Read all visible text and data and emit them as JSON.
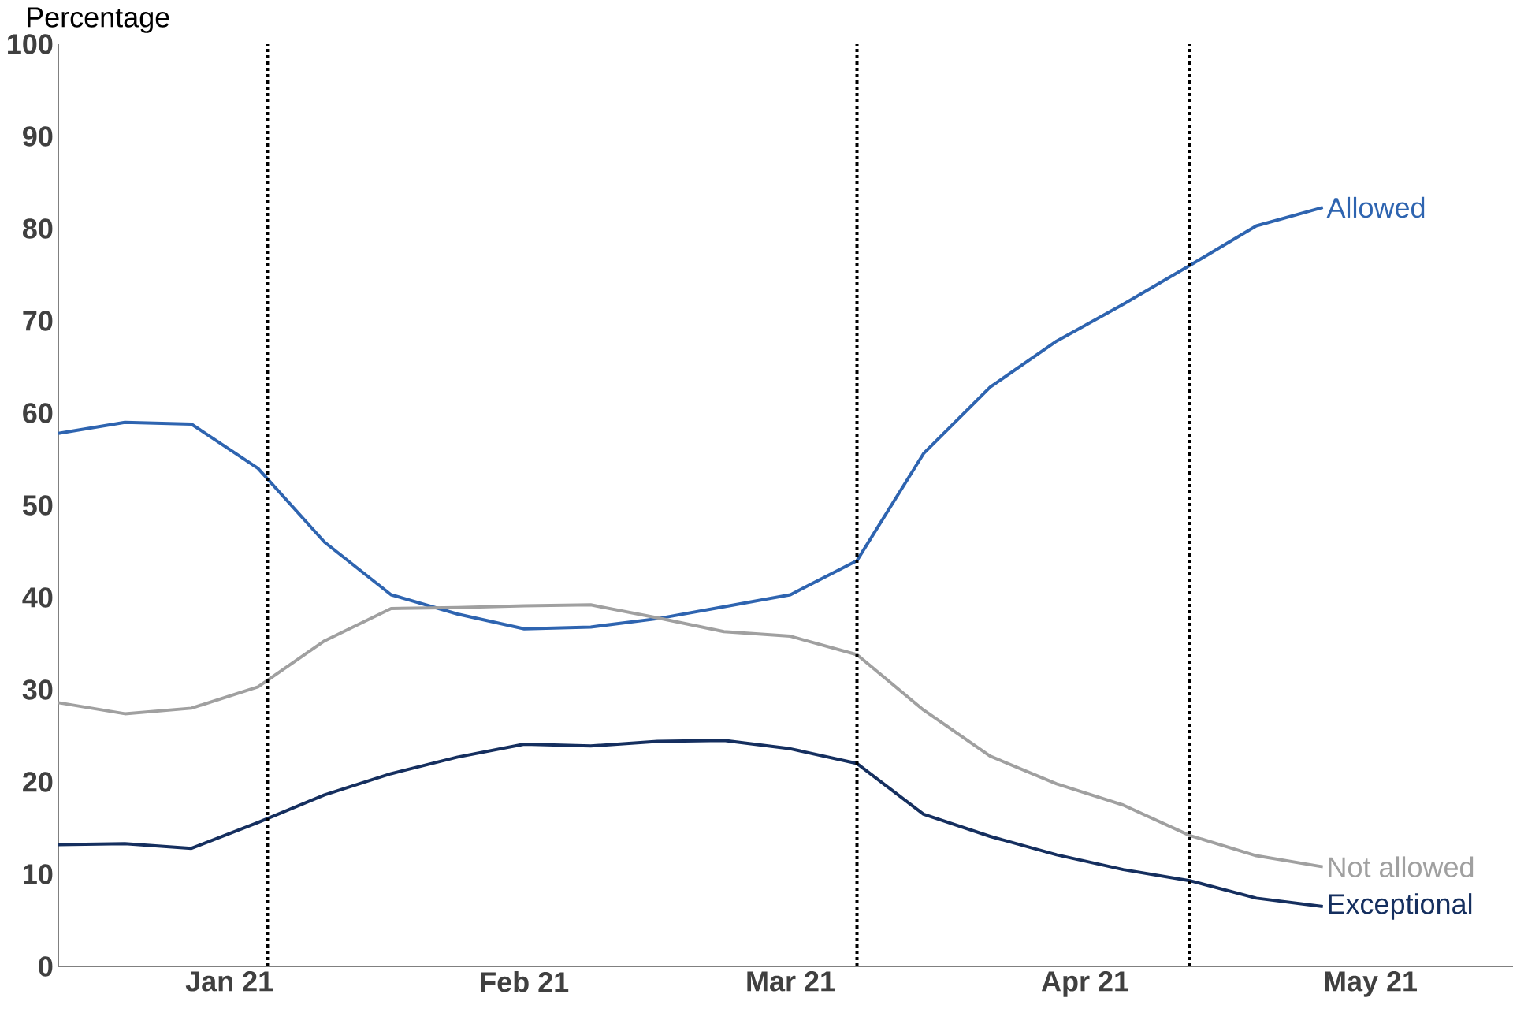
{
  "chart_data": {
    "type": "line",
    "ylabel": "Percentage",
    "x": [
      "2020-12-14",
      "2020-12-21",
      "2020-12-28",
      "2021-01-04",
      "2021-01-11",
      "2021-01-18",
      "2021-01-25",
      "2021-02-01",
      "2021-02-08",
      "2021-02-15",
      "2021-02-22",
      "2021-03-01",
      "2021-03-08",
      "2021-03-15",
      "2021-03-22",
      "2021-03-29",
      "2021-04-05",
      "2021-04-12",
      "2021-04-19",
      "2021-04-26"
    ],
    "xlim": [
      "2020-12-14",
      "2021-05-16"
    ],
    "xticks": [
      {
        "value": "2021-01-01",
        "label": "Jan 21"
      },
      {
        "value": "2021-02-01",
        "label": "Feb 21"
      },
      {
        "value": "2021-03-01",
        "label": "Mar 21"
      },
      {
        "value": "2021-04-01",
        "label": "Apr 21"
      },
      {
        "value": "2021-05-01",
        "label": "May 21"
      }
    ],
    "ylim": [
      0,
      100
    ],
    "yticks": [
      0,
      10,
      20,
      30,
      40,
      50,
      60,
      70,
      80,
      90,
      100
    ],
    "grid": false,
    "legend": false,
    "series": [
      {
        "name": "Allowed",
        "color": "#2e64b0",
        "values": [
          57.8,
          59.0,
          58.8,
          54,
          46,
          40.3,
          38.2,
          36.6,
          36.8,
          37.7,
          39,
          40.3,
          44,
          55.6,
          62.8,
          67.8,
          71.8,
          76,
          80.3,
          82.3
        ]
      },
      {
        "name": "Not allowed",
        "color": "#a0a0a0",
        "values": [
          28.6,
          27.4,
          28,
          30.3,
          35.3,
          38.8,
          38.9,
          39.1,
          39.2,
          37.8,
          36.3,
          35.8,
          33.8,
          27.8,
          22.8,
          19.8,
          17.5,
          14.2,
          12,
          10.8
        ]
      },
      {
        "name": "Exceptional",
        "color": "#152f5f",
        "values": [
          13.2,
          13.3,
          12.8,
          15.6,
          18.6,
          20.9,
          22.7,
          24.1,
          23.9,
          24.4,
          24.5,
          23.6,
          22,
          16.5,
          14.1,
          12.1,
          10.5,
          9.3,
          7.4,
          6.5
        ]
      }
    ],
    "ref_lines": [
      {
        "axis": "x",
        "value": "2021-01-05",
        "color": "#000000",
        "line_style": "dotted"
      },
      {
        "axis": "x",
        "value": "2021-03-08",
        "color": "#000000",
        "line_style": "dotted"
      },
      {
        "axis": "x",
        "value": "2021-04-12",
        "color": "#000000",
        "line_style": "dotted"
      }
    ]
  }
}
